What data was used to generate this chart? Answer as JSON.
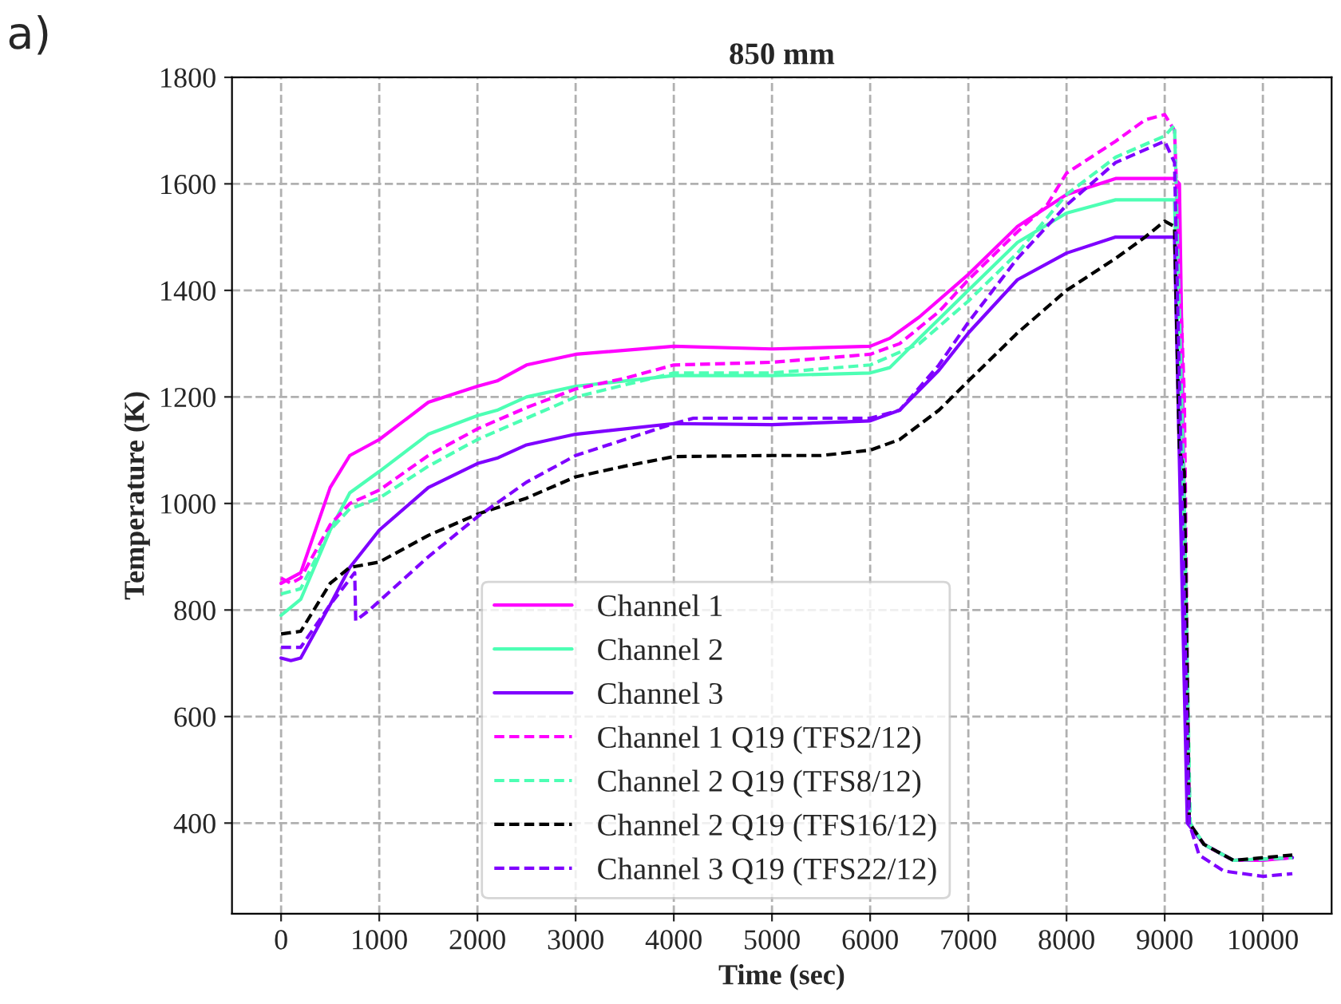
{
  "chart_data": {
    "type": "line",
    "title": "850 mm",
    "xlabel": "Time (sec)",
    "ylabel": "Temperature (K)",
    "annotations": [
      "a)"
    ],
    "xlim": [
      -500,
      10700
    ],
    "ylim": [
      230,
      1800
    ],
    "xticks": [
      0,
      1000,
      2000,
      3000,
      4000,
      5000,
      6000,
      7000,
      8000,
      9000,
      10000
    ],
    "yticks": [
      400,
      600,
      800,
      1000,
      1200,
      1400,
      1600,
      1800
    ],
    "grid": true,
    "legend": "bottom",
    "marker": "none",
    "series": [
      {
        "name": "Channel 1",
        "color": "#ff00ff",
        "line_style": "solid",
        "x": [
          0,
          200,
          500,
          700,
          1000,
          1500,
          2000,
          2200,
          2500,
          3000,
          4000,
          5000,
          6000,
          6200,
          6500,
          7000,
          7500,
          8000,
          8500,
          9100,
          9150,
          9250,
          9400,
          9700,
          10000,
          10300
        ],
        "values": [
          850,
          870,
          1030,
          1090,
          1120,
          1190,
          1220,
          1230,
          1260,
          1280,
          1295,
          1290,
          1295,
          1310,
          1350,
          1430,
          1520,
          1580,
          1610,
          1610,
          1600,
          400,
          360,
          330,
          330,
          335
        ]
      },
      {
        "name": "Channel 2",
        "color": "#4dffb4",
        "line_style": "solid",
        "x": [
          0,
          200,
          500,
          700,
          1000,
          1500,
          2000,
          2200,
          2500,
          3000,
          4000,
          5000,
          6000,
          6200,
          6500,
          7000,
          7500,
          8000,
          8500,
          9100,
          9250,
          9400,
          9700,
          10300
        ],
        "values": [
          790,
          820,
          950,
          1020,
          1060,
          1130,
          1165,
          1175,
          1200,
          1220,
          1240,
          1240,
          1245,
          1255,
          1310,
          1400,
          1490,
          1545,
          1570,
          1570,
          400,
          360,
          330,
          335
        ]
      },
      {
        "name": "Channel 3",
        "color": "#7f00ff",
        "line_style": "solid",
        "x": [
          0,
          100,
          200,
          500,
          700,
          1000,
          1500,
          2000,
          2200,
          2500,
          3000,
          4000,
          5000,
          6000,
          6300,
          6700,
          7000,
          7500,
          8000,
          8500,
          9100,
          9230,
          9400,
          9700,
          10300
        ],
        "values": [
          710,
          705,
          710,
          810,
          880,
          950,
          1030,
          1075,
          1085,
          1110,
          1130,
          1150,
          1148,
          1155,
          1175,
          1250,
          1320,
          1420,
          1470,
          1500,
          1500,
          400,
          360,
          330,
          335
        ]
      },
      {
        "name": "Channel 1 Q19 (TFS2/12)",
        "color": "#ff00ff",
        "line_style": "dashed",
        "x": [
          0,
          100,
          200,
          500,
          700,
          1000,
          1500,
          2000,
          2500,
          3000,
          3500,
          4000,
          5000,
          6000,
          6300,
          6700,
          7000,
          7500,
          7800,
          8000,
          8500,
          8800,
          9000,
          9100,
          9200,
          9250,
          9400,
          9700,
          10300
        ],
        "values": [
          860,
          850,
          860,
          960,
          1000,
          1025,
          1090,
          1140,
          1180,
          1215,
          1235,
          1260,
          1265,
          1280,
          1300,
          1360,
          1420,
          1510,
          1560,
          1620,
          1680,
          1720,
          1730,
          1700,
          1200,
          400,
          360,
          330,
          335
        ]
      },
      {
        "name": "Channel 2 Q19 (TFS8/12)",
        "color": "#4dffb4",
        "line_style": "dashed",
        "x": [
          0,
          200,
          500,
          700,
          1000,
          1500,
          2000,
          2500,
          3000,
          4000,
          5000,
          6000,
          6500,
          7000,
          7500,
          8000,
          8500,
          9000,
          9100,
          9200,
          9260,
          9400,
          9700,
          10300
        ],
        "values": [
          830,
          840,
          950,
          990,
          1010,
          1070,
          1120,
          1160,
          1200,
          1245,
          1245,
          1260,
          1300,
          1380,
          1470,
          1580,
          1650,
          1690,
          1710,
          1000,
          400,
          360,
          330,
          335
        ]
      },
      {
        "name": "Channel 2 Q19 (TFS16/12)",
        "color": "#000000",
        "line_style": "dashed",
        "x": [
          0,
          200,
          500,
          700,
          1000,
          1500,
          2000,
          2500,
          3000,
          3500,
          4000,
          5000,
          5500,
          6000,
          6300,
          6700,
          7000,
          7500,
          8000,
          8500,
          8800,
          9000,
          9100,
          9150,
          9200,
          9250,
          9400,
          9700,
          10300
        ],
        "values": [
          755,
          760,
          850,
          880,
          890,
          940,
          980,
          1010,
          1050,
          1070,
          1088,
          1090,
          1090,
          1100,
          1120,
          1175,
          1230,
          1320,
          1400,
          1460,
          1500,
          1530,
          1520,
          1100,
          1060,
          400,
          360,
          330,
          340
        ]
      },
      {
        "name": "Channel 3 Q19 (TFS22/12)",
        "color": "#7f00ff",
        "line_style": "dashed",
        "x": [
          0,
          200,
          500,
          750,
          760,
          900,
          1500,
          2000,
          2500,
          3000,
          3500,
          4000,
          4200,
          5000,
          6000,
          6300,
          6700,
          7000,
          7500,
          8000,
          8500,
          9000,
          9100,
          9250,
          9350,
          9600,
          10000,
          10300
        ],
        "values": [
          730,
          730,
          810,
          870,
          780,
          800,
          900,
          975,
          1040,
          1090,
          1120,
          1150,
          1160,
          1160,
          1160,
          1175,
          1260,
          1340,
          1460,
          1560,
          1640,
          1680,
          1640,
          400,
          340,
          310,
          300,
          305
        ]
      }
    ]
  }
}
